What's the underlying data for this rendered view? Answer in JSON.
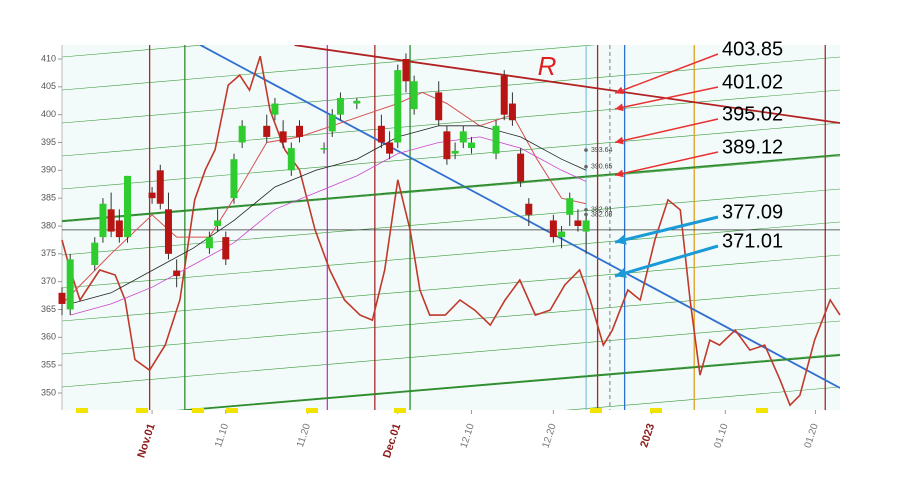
{
  "chart_data": {
    "type": "candlestick",
    "xlim": [
      -11,
      84
    ],
    "ylim": [
      350,
      410
    ],
    "yticks": [
      350,
      355,
      360,
      365,
      370,
      375,
      380,
      385,
      390,
      395,
      400,
      405,
      410
    ],
    "xticks": [
      {
        "value": 0,
        "label": "Nov.01",
        "color": "#8b1a1a"
      },
      {
        "value": 9,
        "label": "11.10",
        "color": "#777777"
      },
      {
        "value": 19,
        "label": "11.20",
        "color": "#777777"
      },
      {
        "value": 30,
        "label": "Dec.01",
        "color": "#8b1a1a"
      },
      {
        "value": 39,
        "label": "12.10",
        "color": "#777777"
      },
      {
        "value": 49,
        "label": "12.20",
        "color": "#777777"
      },
      {
        "value": 61,
        "label": "2023",
        "color": "#8b1a1a"
      },
      {
        "value": 70,
        "label": "01.10",
        "color": "#777777"
      },
      {
        "value": 81,
        "label": "01.20",
        "color": "#777777"
      }
    ],
    "up_color": "#2ecc2e",
    "down_color": "#b81414",
    "candles": [
      {
        "x": -11,
        "open": 368,
        "high": 369,
        "low": 364,
        "close": 366
      },
      {
        "x": -10,
        "open": 365,
        "high": 375,
        "low": 364,
        "close": 374
      },
      {
        "x": -7,
        "open": 373,
        "high": 378,
        "low": 372,
        "close": 377
      },
      {
        "x": -6,
        "open": 378,
        "high": 385,
        "low": 377,
        "close": 384
      },
      {
        "x": -5,
        "open": 383,
        "high": 386,
        "low": 378,
        "close": 379
      },
      {
        "x": -4,
        "open": 381,
        "high": 383,
        "low": 377,
        "close": 378
      },
      {
        "x": -3,
        "open": 378,
        "high": 389,
        "low": 377,
        "close": 389
      },
      {
        "x": 0,
        "open": 386,
        "high": 387,
        "low": 384,
        "close": 385
      },
      {
        "x": 1,
        "open": 390,
        "high": 391,
        "low": 383,
        "close": 384
      },
      {
        "x": 2,
        "open": 383,
        "high": 386,
        "low": 374,
        "close": 375
      },
      {
        "x": 3,
        "open": 372,
        "high": 374,
        "low": 369,
        "close": 371
      },
      {
        "x": 7,
        "open": 376,
        "high": 379,
        "low": 375,
        "close": 378
      },
      {
        "x": 8,
        "open": 380,
        "high": 383,
        "low": 379,
        "close": 381
      },
      {
        "x": 9,
        "open": 378,
        "high": 379,
        "low": 373,
        "close": 374
      },
      {
        "x": 10,
        "open": 385,
        "high": 393,
        "low": 384,
        "close": 392
      },
      {
        "x": 11,
        "open": 395,
        "high": 399,
        "low": 394,
        "close": 398
      },
      {
        "x": 14,
        "open": 398,
        "high": 400,
        "low": 395,
        "close": 396
      },
      {
        "x": 15,
        "open": 400,
        "high": 403,
        "low": 399,
        "close": 402
      },
      {
        "x": 16,
        "open": 397,
        "high": 399,
        "low": 394,
        "close": 395
      },
      {
        "x": 17,
        "open": 390,
        "high": 395,
        "low": 389,
        "close": 394
      },
      {
        "x": 18,
        "open": 398,
        "high": 399,
        "low": 395,
        "close": 396
      },
      {
        "x": 21,
        "open": 394,
        "high": 395,
        "low": 393,
        "close": 394
      },
      {
        "x": 22,
        "open": 397,
        "high": 401,
        "low": 396,
        "close": 400
      },
      {
        "x": 23,
        "open": 400,
        "high": 404,
        "low": 399,
        "close": 403
      },
      {
        "x": 25,
        "open": 402,
        "high": 403,
        "low": 401,
        "close": 402.5
      },
      {
        "x": 28,
        "open": 398,
        "high": 400,
        "low": 394,
        "close": 395
      },
      {
        "x": 29,
        "open": 395,
        "high": 397,
        "low": 392,
        "close": 393
      },
      {
        "x": 30,
        "open": 395,
        "high": 409,
        "low": 394,
        "close": 408
      },
      {
        "x": 31,
        "open": 410,
        "high": 411,
        "low": 404,
        "close": 406
      },
      {
        "x": 32,
        "open": 401,
        "high": 407,
        "low": 400,
        "close": 406
      },
      {
        "x": 35,
        "open": 404,
        "high": 406,
        "low": 398,
        "close": 399
      },
      {
        "x": 36,
        "open": 397,
        "high": 398,
        "low": 391,
        "close": 392
      },
      {
        "x": 37,
        "open": 393,
        "high": 395,
        "low": 392,
        "close": 393.5
      },
      {
        "x": 38,
        "open": 395,
        "high": 398,
        "low": 394,
        "close": 397
      },
      {
        "x": 39,
        "open": 394,
        "high": 396,
        "low": 393,
        "close": 395
      },
      {
        "x": 42,
        "open": 393,
        "high": 399,
        "low": 392,
        "close": 398
      },
      {
        "x": 43,
        "open": 407,
        "high": 408,
        "low": 399,
        "close": 400
      },
      {
        "x": 44,
        "open": 402,
        "high": 404,
        "low": 398,
        "close": 399
      },
      {
        "x": 45,
        "open": 393,
        "high": 394,
        "low": 387,
        "close": 388
      },
      {
        "x": 46,
        "open": 384,
        "high": 385,
        "low": 380,
        "close": 382
      },
      {
        "x": 49,
        "open": 381,
        "high": 382,
        "low": 377,
        "close": 378
      },
      {
        "x": 50,
        "open": 378,
        "high": 380,
        "low": 376,
        "close": 379
      },
      {
        "x": 51,
        "open": 382,
        "high": 386,
        "low": 380,
        "close": 385
      },
      {
        "x": 52,
        "open": 381,
        "high": 383,
        "low": 379,
        "close": 380
      },
      {
        "x": 53,
        "open": 379,
        "high": 382,
        "low": 375,
        "close": 381
      }
    ],
    "series": [
      {
        "color": "#c0392b",
        "width": 1.6,
        "x": [
          -11,
          -10,
          -8.8,
          -7.6,
          -6.4,
          -4.5,
          -3.3,
          -2.1,
          -0.3,
          1.6,
          3.4,
          5.2,
          6.5,
          7.7,
          9.3,
          10.7,
          11.9,
          13.2,
          14.4,
          16.2,
          18,
          19.9,
          21.7,
          23.5,
          25.4,
          26.9,
          28.4,
          30,
          31.5,
          32.7,
          33.9,
          35.8,
          37.6,
          39.4,
          41.3,
          43.1,
          44.9,
          46.8,
          48.6,
          50.4,
          52.2,
          53.5,
          55.1,
          56.2,
          58.1,
          59.6,
          61.4,
          63,
          64.5,
          65.7,
          66.9,
          68.1,
          69.3,
          71.2,
          73,
          74.8,
          76.7,
          77.9,
          79.1,
          80.9,
          82.8,
          84
        ],
        "values": [
          377.5,
          372.1,
          366.7,
          369.4,
          372.1,
          371.2,
          366.7,
          356,
          354.1,
          358.6,
          366.7,
          384.7,
          390.1,
          393.7,
          405.3,
          407.1,
          404.4,
          410.5,
          400.8,
          393.7,
          390.1,
          379.3,
          372.1,
          366.7,
          364,
          363.1,
          372.1,
          388.3,
          379.3,
          368.5,
          364,
          364,
          366.7,
          364.9,
          362.2,
          366.7,
          370.3,
          364,
          364.9,
          369.4,
          372.1,
          366.7,
          358.6,
          361.3,
          368.5,
          366.7,
          377.5,
          384.7,
          382.9,
          366.7,
          353.2,
          359.5,
          358.6,
          361.3,
          357.7,
          358.6,
          352.3,
          347.8,
          349.6,
          359.5,
          366.7,
          364
        ]
      },
      {
        "color": "#d65050",
        "width": 1,
        "x": [
          -11,
          -5,
          0,
          3,
          7,
          10,
          14,
          18,
          22,
          26,
          30,
          33,
          36,
          40,
          44,
          47,
          50,
          53
        ],
        "values": [
          366,
          375,
          382,
          378,
          378,
          385,
          395,
          396,
          398,
          400,
          402,
          404,
          402,
          398,
          400,
          392,
          385,
          384
        ]
      },
      {
        "color": "#222222",
        "width": 0.8,
        "x": [
          -10,
          -5,
          0,
          5,
          10,
          15,
          20,
          25,
          30,
          35,
          40,
          45,
          50,
          53
        ],
        "values": [
          366,
          368,
          372,
          376,
          381,
          387,
          390,
          392,
          396,
          398,
          398,
          396,
          392,
          390
        ]
      },
      {
        "color": "#cc44cc",
        "width": 0.8,
        "x": [
          -10,
          -5,
          0,
          5,
          10,
          15,
          20,
          25,
          30,
          35,
          40,
          45,
          50,
          53
        ],
        "values": [
          364,
          366,
          369,
          373,
          377,
          383,
          386,
          389,
          393,
          395,
          396,
          394,
          390,
          388
        ]
      }
    ],
    "trend_lines": [
      {
        "color": "#2f6fd0",
        "width": 1.8,
        "x": [
          5.9,
          84
        ],
        "y": [
          412.5,
          350.9
        ]
      },
      {
        "color": "#b22222",
        "width": 1.8,
        "x": [
          17.4,
          84
        ],
        "y": [
          412.5,
          398.5
        ]
      },
      {
        "color": "#2e8b2e",
        "width": 1.6,
        "x": [
          -11,
          84
        ],
        "y": [
          380.9,
          392.8
        ]
      },
      {
        "color": "#2e8b2e",
        "width": 1.6,
        "x": [
          4,
          84
        ],
        "y": [
          346.9,
          356.8
        ]
      },
      {
        "color": "#333333",
        "width": 0.8,
        "x": [
          -11,
          84
        ],
        "y": [
          379.3,
          379.3
        ]
      }
    ],
    "vlines": [
      {
        "x": -0.3,
        "color": "#a52a2a"
      },
      {
        "x": 4,
        "color": "#2e8b2e"
      },
      {
        "x": 21.4,
        "color": "#cc33cc"
      },
      {
        "x": 27.2,
        "color": "#a52a2a"
      },
      {
        "x": 31.5,
        "color": "#2e8b2e"
      },
      {
        "x": 53,
        "color": "#88c8d8"
      },
      {
        "x": 54.4,
        "color": "#b22222"
      },
      {
        "x": 55.9,
        "color": "#999999"
      },
      {
        "x": 57.7,
        "color": "#2f6fd0"
      },
      {
        "x": 66.2,
        "color": "#e0a020"
      },
      {
        "x": 82.2,
        "color": "#a52a2a"
      }
    ],
    "price_labels": [
      {
        "label": "393.64",
        "value": 393.64
      },
      {
        "label": "390.65",
        "value": 390.65
      },
      {
        "label": "382.91",
        "value": 382.91
      },
      {
        "label": "382.08",
        "value": 382.08
      }
    ],
    "annotations": [
      {
        "label": "403.85",
        "value": 403.85,
        "color": "#e83030"
      },
      {
        "label": "401.02",
        "value": 401.02,
        "color": "#e83030"
      },
      {
        "label": "395.02",
        "value": 395.02,
        "color": "#e83030"
      },
      {
        "label": "389.12",
        "value": 389.12,
        "color": "#e83030"
      },
      {
        "label": "377.09",
        "value": 377.09,
        "color": "#1a9ad6"
      },
      {
        "label": "371.01",
        "value": 371.01,
        "color": "#1a9ad6"
      }
    ],
    "marker_text": "R"
  }
}
